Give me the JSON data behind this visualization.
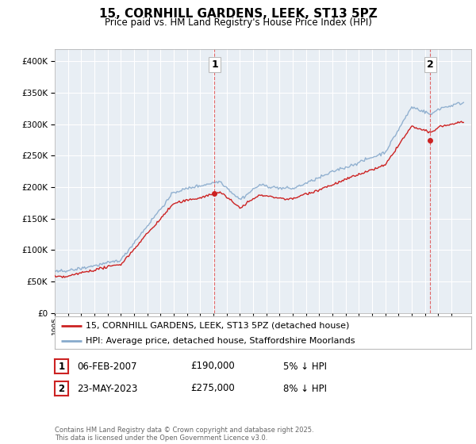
{
  "title": "15, CORNHILL GARDENS, LEEK, ST13 5PZ",
  "subtitle": "Price paid vs. HM Land Registry's House Price Index (HPI)",
  "legend_line1": "15, CORNHILL GARDENS, LEEK, ST13 5PZ (detached house)",
  "legend_line2": "HPI: Average price, detached house, Staffordshire Moorlands",
  "annotation1_date": "06-FEB-2007",
  "annotation1_price": "£190,000",
  "annotation1_hpi": "5% ↓ HPI",
  "annotation2_date": "23-MAY-2023",
  "annotation2_price": "£275,000",
  "annotation2_hpi": "8% ↓ HPI",
  "footer": "Contains HM Land Registry data © Crown copyright and database right 2025.\nThis data is licensed under the Open Government Licence v3.0.",
  "line_color_red": "#cc2222",
  "line_color_blue": "#88aacc",
  "chart_bg": "#e8eef4",
  "background_color": "#ffffff",
  "grid_color": "#ffffff",
  "ylim": [
    0,
    420000
  ],
  "yticks": [
    0,
    50000,
    100000,
    150000,
    200000,
    250000,
    300000,
    350000,
    400000
  ],
  "sale1_year": 2007.09,
  "sale1_value": 190000,
  "sale2_year": 2023.39,
  "sale2_value": 275000,
  "xmin": 1995,
  "xmax": 2026.5
}
